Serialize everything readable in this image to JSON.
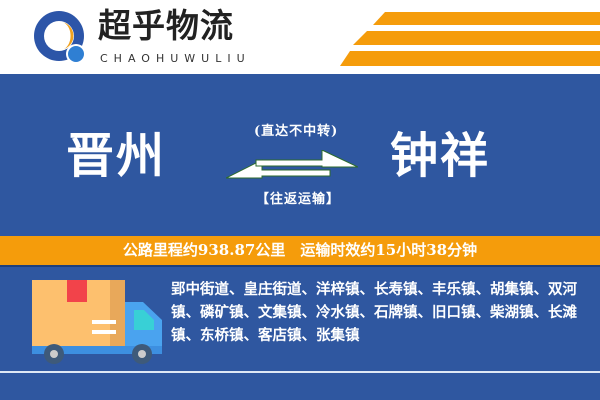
{
  "header": {
    "brand": "超乎物流",
    "brand_en": "CHAOHUWULIU",
    "colors": {
      "blue": "#2f57a0",
      "orange": "#f59c0b"
    }
  },
  "route": {
    "origin": "晋州",
    "destination": "钟祥",
    "note_top": "(直达不中转)",
    "note_bottom": "【往返运输】",
    "arrow_icon": "bidirectional-arrows-icon"
  },
  "info": {
    "text": "公路里程约938.87公里　运输时效约15小时38分钟"
  },
  "towns": {
    "text": "郢中街道、皇庄街道、洋梓镇、长寿镇、丰乐镇、胡集镇、双河镇、磷矿镇、文集镇、冷水镇、石牌镇、旧口镇、柴湖镇、长滩镇、东桥镇、客店镇、张集镇"
  }
}
